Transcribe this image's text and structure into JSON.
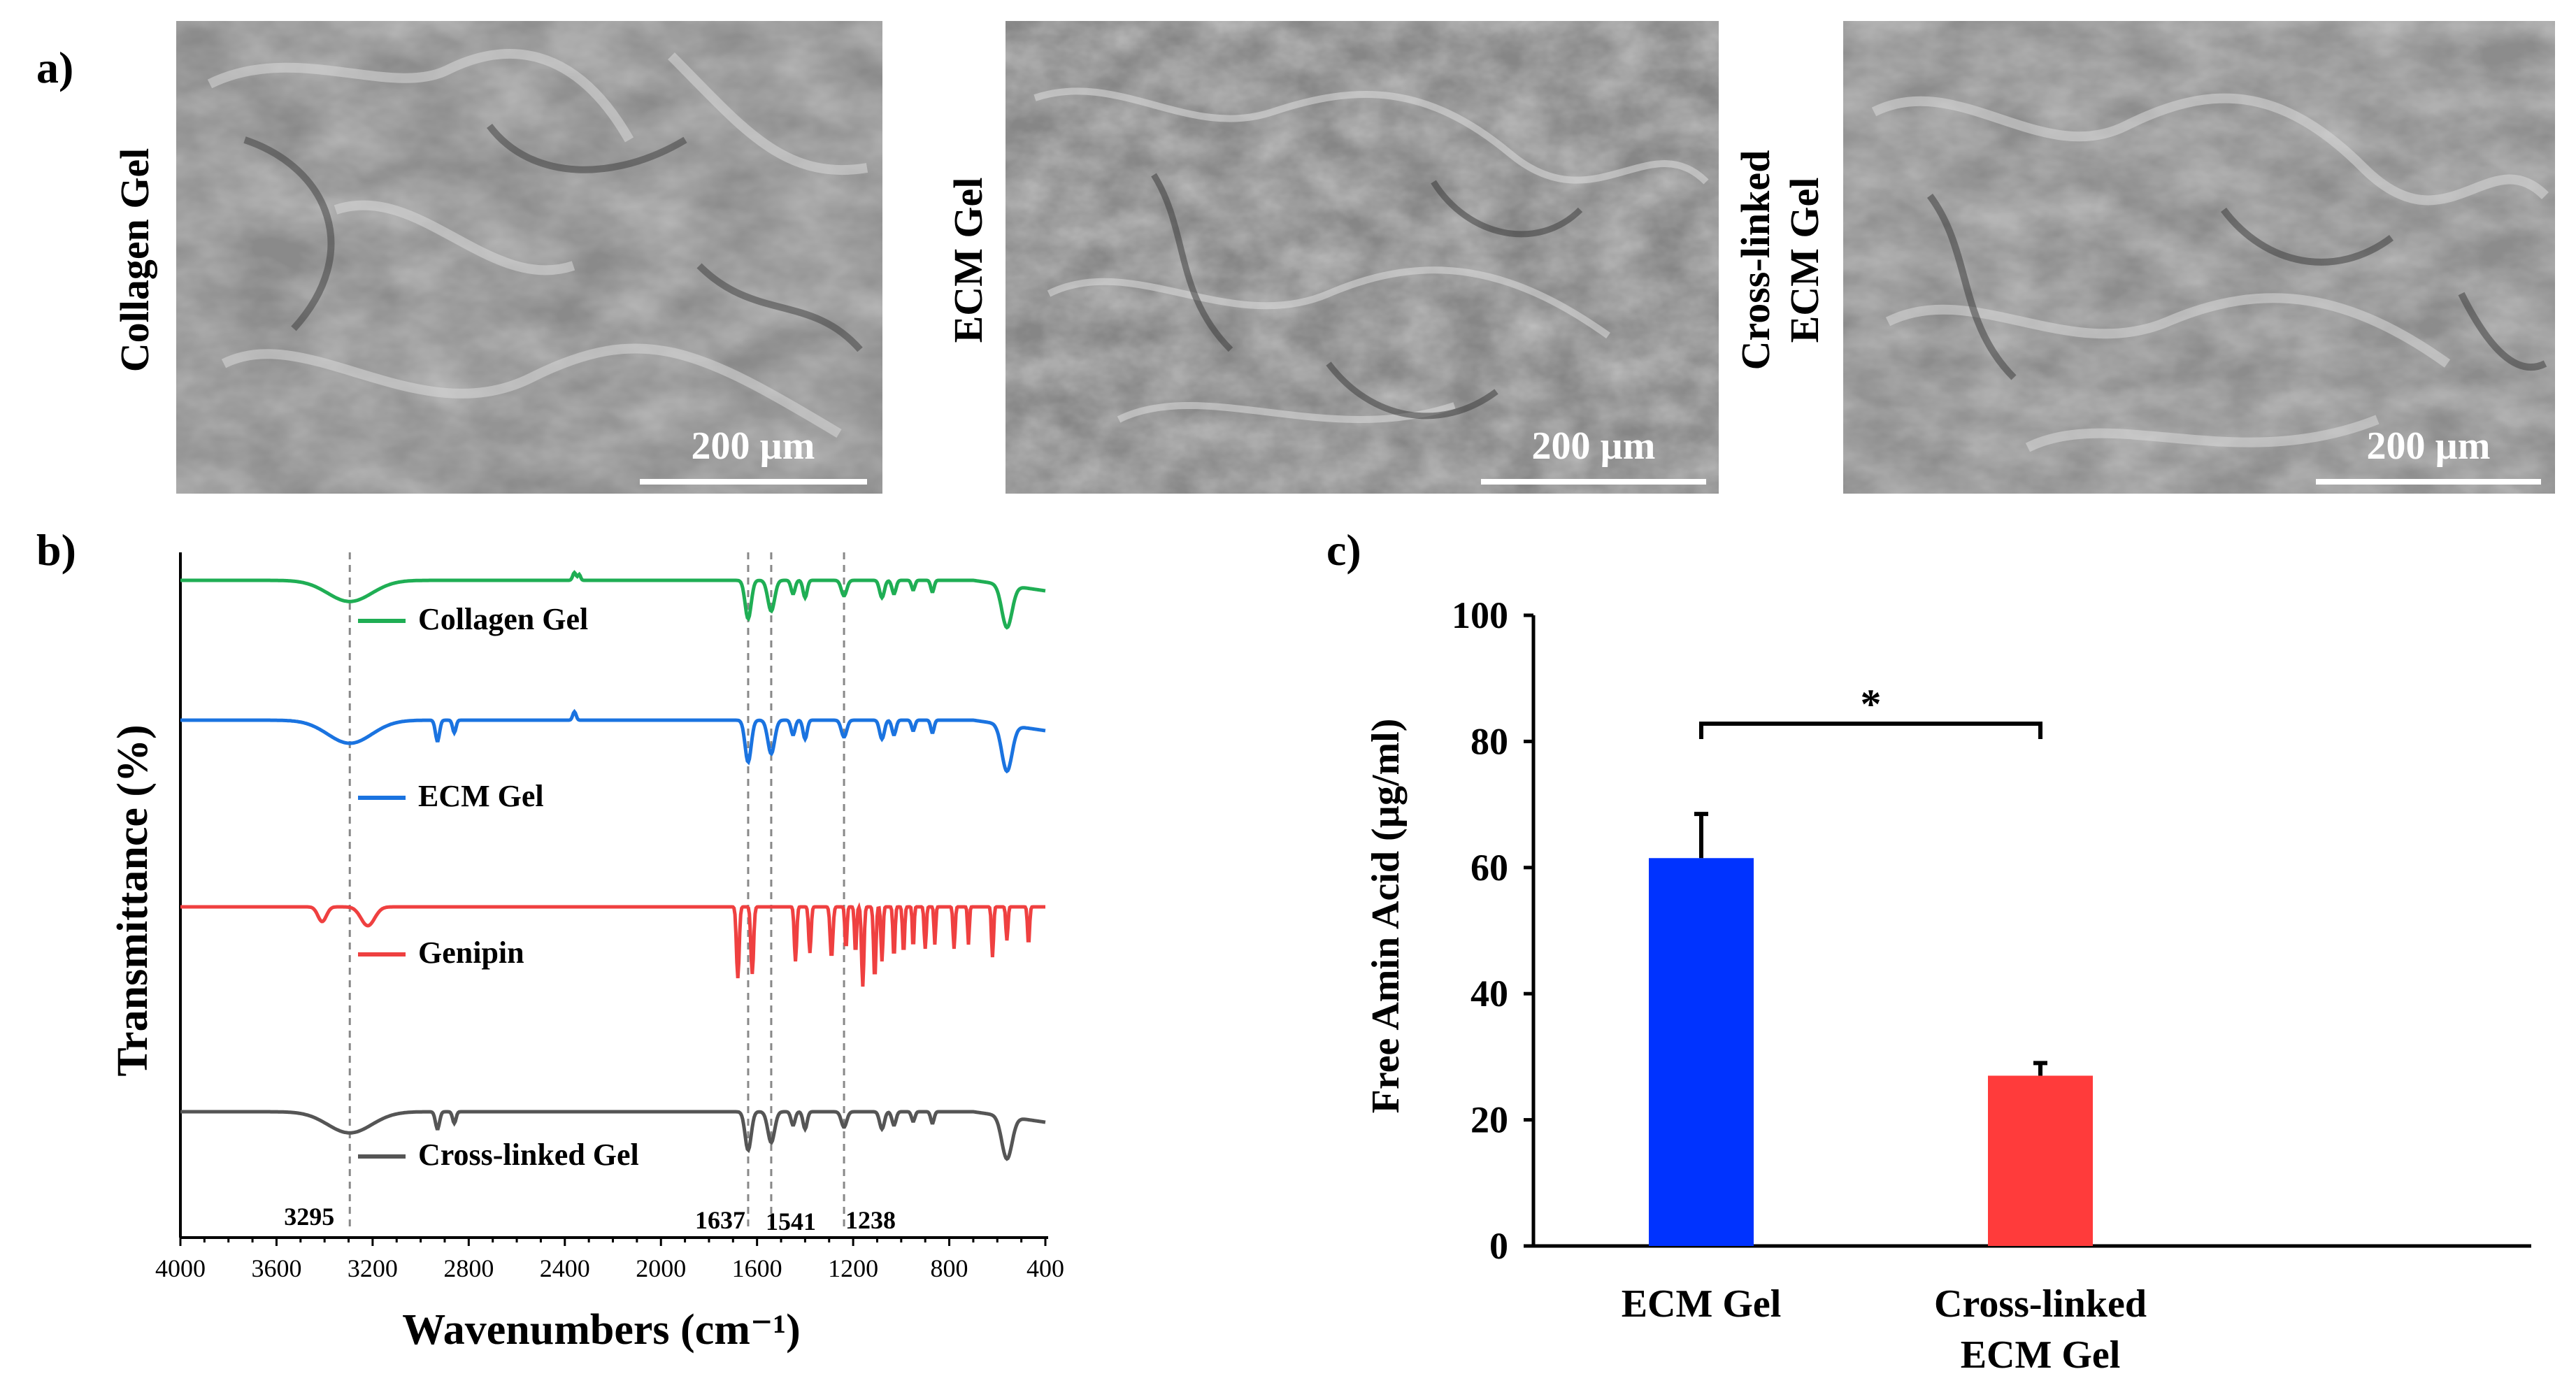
{
  "panel_labels": {
    "a": "a)",
    "b": "b)",
    "c": "c)"
  },
  "sem": {
    "images": [
      {
        "label": "Collagen Gel",
        "scale_bar": "200 µm"
      },
      {
        "label": "ECM Gel",
        "scale_bar": "200 µm"
      },
      {
        "label_line1": "Cross-linked",
        "label_line2": "ECM Gel",
        "scale_bar": "200 µm"
      }
    ]
  },
  "chart_data": [
    {
      "type": "line",
      "title": "",
      "xlabel": "Wavenumbers (cm⁻¹)",
      "ylabel": "Transmittance (%)",
      "xlim": [
        4000,
        400
      ],
      "x_ticks": [
        "4000",
        "3600",
        "3200",
        "2800",
        "2400",
        "2000",
        "1600",
        "1200",
        "800",
        "400"
      ],
      "series": [
        {
          "name": "Collagen Gel",
          "color": "#1fae54"
        },
        {
          "name": "ECM Gel",
          "color": "#1a73e0"
        },
        {
          "name": "Genipin",
          "color": "#ef4040"
        },
        {
          "name": "Cross-linked Gel",
          "color": "#555555"
        }
      ],
      "reference_lines": [
        "3295",
        "1637",
        "1541",
        "1238"
      ]
    },
    {
      "type": "bar",
      "title": "",
      "xlabel": "",
      "ylabel": "Free Amin Acid (µg/ml)",
      "ylim": [
        0,
        100
      ],
      "y_ticks": [
        "0",
        "20",
        "40",
        "60",
        "80",
        "100"
      ],
      "categories": [
        {
          "line1": "ECM Gel",
          "line2": ""
        },
        {
          "line1": "Cross-linked",
          "line2": "ECM Gel"
        }
      ],
      "values": [
        61.5,
        27
      ],
      "errors": [
        7,
        2
      ],
      "colors": [
        "#0033ff",
        "#ff3b3b"
      ],
      "significance": "*"
    }
  ]
}
